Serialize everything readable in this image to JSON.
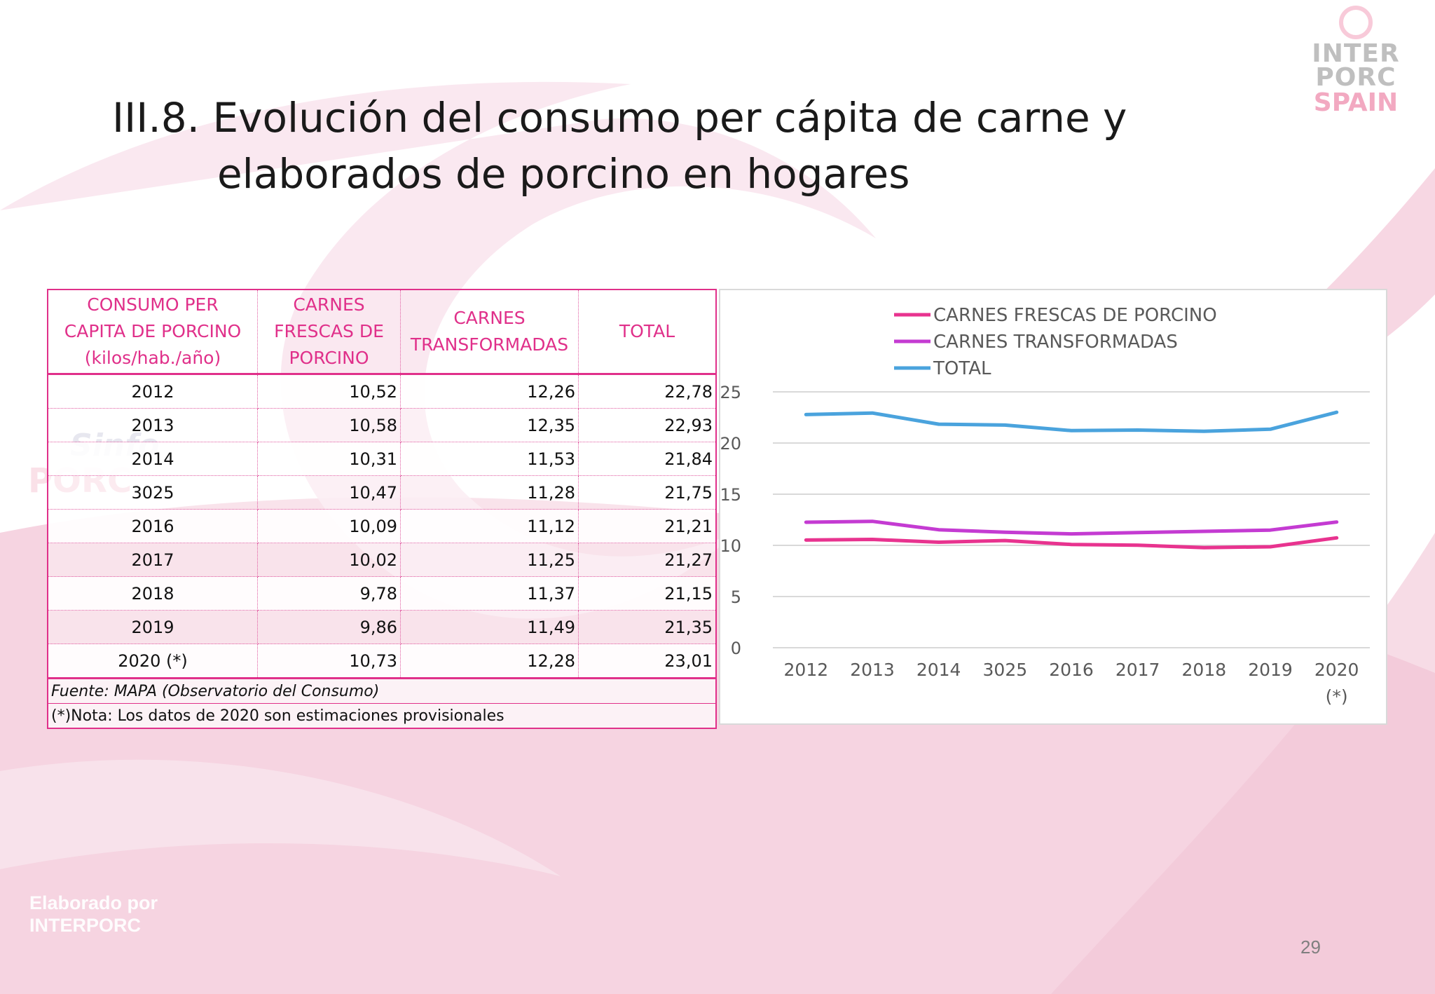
{
  "title": {
    "line1": "III.8. Evolución del consumo per cápita de carne y",
    "line2": "elaborados de porcino en hogares"
  },
  "logo": {
    "line1": "INTER",
    "line2": "PORC",
    "line3": "SPAIN"
  },
  "watermark": {
    "line1": "Sinfo",
    "line2": "PORC"
  },
  "credit": {
    "line1": "Elaborado por",
    "line2": "INTERPORC"
  },
  "page_number": "29",
  "colors": {
    "accent": "#e0308a",
    "fresh": "#e8338f",
    "processed": "#c43bd2",
    "total": "#4aa3dd",
    "background_pink": "#f6d4e1"
  },
  "table": {
    "headers": [
      [
        "CONSUMO PER",
        "CAPITA DE PORCINO",
        "(kilos/hab./año)"
      ],
      [
        "CARNES",
        "FRESCAS DE",
        "PORCINO"
      ],
      [
        "CARNES",
        "TRANSFORMADAS"
      ],
      [
        "TOTAL"
      ]
    ],
    "rows": [
      [
        "2012",
        "10,52",
        "12,26",
        "22,78"
      ],
      [
        "2013",
        "10,58",
        "12,35",
        "22,93"
      ],
      [
        "2014",
        "10,31",
        "11,53",
        "21,84"
      ],
      [
        "3025",
        "10,47",
        "11,28",
        "21,75"
      ],
      [
        "2016",
        "10,09",
        "11,12",
        "21,21"
      ],
      [
        "2017",
        "10,02",
        "11,25",
        "21,27"
      ],
      [
        "2018",
        "9,78",
        "11,37",
        "21,15"
      ],
      [
        "2019",
        "9,86",
        "11,49",
        "21,35"
      ],
      [
        "2020 (*)",
        "10,73",
        "12,28",
        "23,01"
      ]
    ],
    "source": "Fuente: MAPA (Observatorio del Consumo)",
    "note": "(*)Nota: Los datos de 2020 son estimaciones provisionales"
  },
  "chart_data": {
    "type": "line",
    "categories": [
      "2012",
      "2013",
      "2014",
      "3025",
      "2016",
      "2017",
      "2018",
      "2019",
      "2020 (*)"
    ],
    "series": [
      {
        "name": "CARNES FRESCAS DE PORCINO",
        "color": "#e8338f",
        "values": [
          10.52,
          10.58,
          10.31,
          10.47,
          10.09,
          10.02,
          9.78,
          9.86,
          10.73
        ]
      },
      {
        "name": "CARNES TRANSFORMADAS",
        "color": "#c43bd2",
        "values": [
          12.26,
          12.35,
          11.53,
          11.28,
          11.12,
          11.25,
          11.37,
          11.49,
          12.28
        ]
      },
      {
        "name": "TOTAL",
        "color": "#4aa3dd",
        "values": [
          22.78,
          22.93,
          21.84,
          21.75,
          21.21,
          21.27,
          21.15,
          21.35,
          23.01
        ]
      }
    ],
    "yticks": [
      "0",
      "5",
      "10",
      "15",
      "20",
      "25"
    ],
    "ylim": [
      0,
      25
    ],
    "grid": true,
    "legend": "top"
  }
}
